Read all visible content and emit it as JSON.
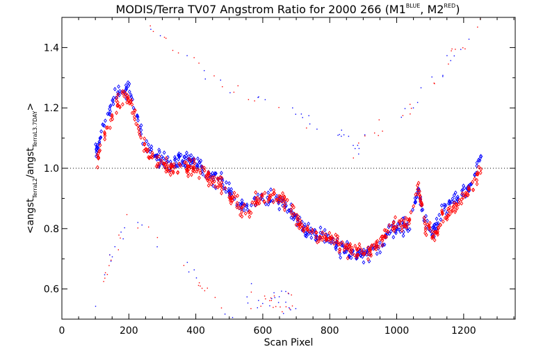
{
  "chart_data": {
    "type": "scatter",
    "title": {
      "main": "MODIS/Terra TV07 Angstrom Ratio for 2000 266 (M1",
      "sup1": "BLUE",
      "mid": ", M2",
      "sup2": "RED",
      "end": ")"
    },
    "xlabel": "Scan Pixel",
    "ylabel": {
      "pre": "<angst",
      "sub1": "TerraL2",
      "mid": "/angst",
      "sub2": "TerraL3.7DAY",
      "post": ">"
    },
    "xlim": [
      0,
      1354
    ],
    "ylim": [
      0.5,
      1.5
    ],
    "xticks": [
      0,
      200,
      400,
      600,
      800,
      1000,
      1200
    ],
    "xtick_labels": [
      "0",
      "200",
      "400",
      "600",
      "800",
      "1000",
      "1200"
    ],
    "yticks": [
      0.6,
      0.8,
      1.0,
      1.2,
      1.4
    ],
    "ytick_labels": [
      "0.6",
      "0.8",
      "1.0",
      "1.2",
      "1.4"
    ],
    "reference_line": 1.0,
    "grid": false,
    "colors": {
      "M1": "#0000ff",
      "M2": "#ff0000",
      "reference_line": "#000000"
    },
    "series": [
      {
        "color": "#0000ff",
        "marker": "diamond",
        "trend": [
          [
            100,
            1.05
          ],
          [
            130,
            1.16
          ],
          [
            160,
            1.24
          ],
          [
            185,
            1.26
          ],
          [
            205,
            1.25
          ],
          [
            225,
            1.18
          ],
          [
            250,
            1.07
          ],
          [
            280,
            1.04
          ],
          [
            320,
            1.01
          ],
          [
            360,
            1.03
          ],
          [
            400,
            1.02
          ],
          [
            440,
            0.98
          ],
          [
            480,
            0.95
          ],
          [
            520,
            0.9
          ],
          [
            550,
            0.86
          ],
          [
            580,
            0.9
          ],
          [
            620,
            0.9
          ],
          [
            660,
            0.89
          ],
          [
            690,
            0.85
          ],
          [
            720,
            0.8
          ],
          [
            760,
            0.78
          ],
          [
            800,
            0.76
          ],
          [
            840,
            0.73
          ],
          [
            880,
            0.71
          ],
          [
            920,
            0.72
          ],
          [
            950,
            0.74
          ],
          [
            980,
            0.8
          ],
          [
            1010,
            0.8
          ],
          [
            1040,
            0.82
          ],
          [
            1065,
            0.93
          ],
          [
            1085,
            0.83
          ],
          [
            1110,
            0.79
          ],
          [
            1140,
            0.86
          ],
          [
            1170,
            0.89
          ],
          [
            1200,
            0.92
          ],
          [
            1230,
            0.96
          ],
          [
            1250,
            1.05
          ]
        ]
      },
      {
        "color": "#ff0000",
        "marker": "diamond",
        "trend": [
          [
            100,
            1.0
          ],
          [
            130,
            1.12
          ],
          [
            160,
            1.21
          ],
          [
            185,
            1.24
          ],
          [
            205,
            1.22
          ],
          [
            225,
            1.15
          ],
          [
            250,
            1.06
          ],
          [
            280,
            1.03
          ],
          [
            320,
            1.0
          ],
          [
            360,
            1.01
          ],
          [
            400,
            1.0
          ],
          [
            440,
            0.97
          ],
          [
            480,
            0.94
          ],
          [
            520,
            0.89
          ],
          [
            550,
            0.86
          ],
          [
            580,
            0.89
          ],
          [
            620,
            0.9
          ],
          [
            660,
            0.9
          ],
          [
            690,
            0.86
          ],
          [
            720,
            0.8
          ],
          [
            760,
            0.78
          ],
          [
            800,
            0.77
          ],
          [
            840,
            0.74
          ],
          [
            880,
            0.72
          ],
          [
            920,
            0.73
          ],
          [
            950,
            0.76
          ],
          [
            980,
            0.81
          ],
          [
            1010,
            0.81
          ],
          [
            1040,
            0.83
          ],
          [
            1065,
            0.95
          ],
          [
            1085,
            0.81
          ],
          [
            1110,
            0.78
          ],
          [
            1140,
            0.84
          ],
          [
            1170,
            0.86
          ],
          [
            1200,
            0.9
          ],
          [
            1230,
            0.94
          ],
          [
            1250,
            1.0
          ]
        ]
      }
    ],
    "outlier_arcs": [
      {
        "x": [
          240,
          540
        ],
        "y": [
          1.49,
          1.24
        ]
      },
      {
        "x": [
          540,
          860
        ],
        "y": [
          1.24,
          1.1
        ]
      },
      {
        "x": [
          860,
          1060
        ],
        "y": [
          1.05,
          1.22
        ]
      },
      {
        "x": [
          1060,
          1250
        ],
        "y": [
          1.22,
          1.49
        ]
      },
      {
        "x": [
          100,
          200
        ],
        "y": [
          0.55,
          0.85
        ]
      },
      {
        "x": [
          200,
          500
        ],
        "y": [
          0.85,
          0.52
        ]
      },
      {
        "x": [
          500,
          700
        ],
        "y": [
          0.52,
          0.6
        ]
      },
      {
        "x": [
          560,
          700
        ],
        "y": [
          0.6,
          0.52
        ]
      }
    ]
  }
}
